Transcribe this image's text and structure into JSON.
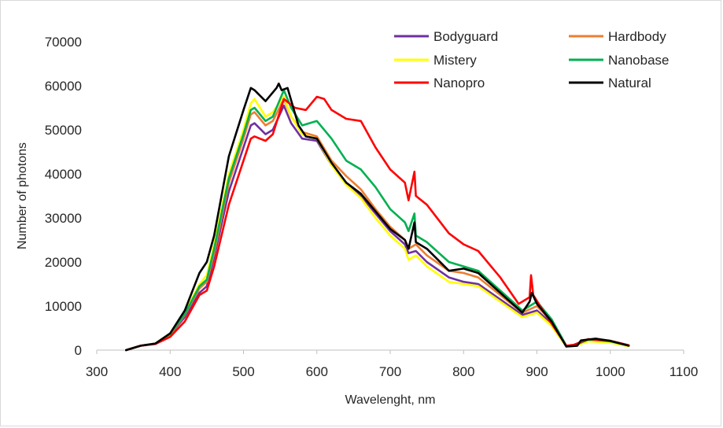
{
  "chart_data": {
    "type": "line",
    "title": "",
    "xlabel": "Wavelenght, nm",
    "ylabel": "Number of photons",
    "xlim": [
      300,
      1100
    ],
    "ylim": [
      0,
      70000
    ],
    "xticks": [
      300,
      400,
      500,
      600,
      700,
      800,
      900,
      1000,
      1100
    ],
    "yticks": [
      0,
      10000,
      20000,
      30000,
      40000,
      50000,
      60000,
      70000
    ],
    "xtick_labels": [
      "300",
      "400",
      "500",
      "600",
      "700",
      "800",
      "900",
      "1000",
      "1100"
    ],
    "ytick_labels": [
      "0",
      "10000",
      "20000",
      "30000",
      "40000",
      "50000",
      "60000",
      "70000"
    ],
    "grid": false,
    "legend_position": "top-right",
    "series": [
      {
        "name": "Bodyguard",
        "color": "#7030a0",
        "points": [
          [
            340,
            0
          ],
          [
            360,
            1000
          ],
          [
            380,
            1500
          ],
          [
            400,
            3500
          ],
          [
            420,
            7500
          ],
          [
            440,
            13000
          ],
          [
            450,
            14500
          ],
          [
            460,
            21000
          ],
          [
            480,
            36000
          ],
          [
            500,
            46000
          ],
          [
            510,
            51000
          ],
          [
            515,
            51500
          ],
          [
            530,
            49000
          ],
          [
            540,
            50000
          ],
          [
            555,
            55500
          ],
          [
            565,
            51500
          ],
          [
            580,
            48000
          ],
          [
            600,
            47500
          ],
          [
            620,
            42000
          ],
          [
            640,
            38000
          ],
          [
            660,
            35000
          ],
          [
            680,
            31000
          ],
          [
            700,
            27000
          ],
          [
            720,
            24000
          ],
          [
            725,
            22000
          ],
          [
            735,
            22500
          ],
          [
            750,
            20000
          ],
          [
            780,
            16500
          ],
          [
            800,
            15500
          ],
          [
            820,
            15000
          ],
          [
            850,
            11500
          ],
          [
            880,
            8000
          ],
          [
            900,
            9000
          ],
          [
            920,
            6000
          ],
          [
            940,
            1000
          ],
          [
            950,
            1000
          ],
          [
            970,
            2200
          ],
          [
            1000,
            1800
          ],
          [
            1025,
            1000
          ]
        ]
      },
      {
        "name": "Hardbody",
        "color": "#ed7d31",
        "points": [
          [
            340,
            0
          ],
          [
            360,
            1000
          ],
          [
            380,
            1500
          ],
          [
            400,
            3500
          ],
          [
            420,
            8000
          ],
          [
            440,
            14000
          ],
          [
            450,
            15500
          ],
          [
            460,
            22000
          ],
          [
            480,
            38000
          ],
          [
            500,
            48000
          ],
          [
            510,
            53500
          ],
          [
            515,
            54000
          ],
          [
            530,
            51000
          ],
          [
            540,
            52000
          ],
          [
            555,
            57000
          ],
          [
            565,
            53000
          ],
          [
            580,
            49500
          ],
          [
            600,
            48500
          ],
          [
            620,
            43000
          ],
          [
            640,
            39500
          ],
          [
            660,
            36500
          ],
          [
            680,
            32000
          ],
          [
            700,
            28000
          ],
          [
            720,
            25000
          ],
          [
            725,
            23000
          ],
          [
            735,
            24000
          ],
          [
            750,
            21500
          ],
          [
            780,
            18000
          ],
          [
            800,
            17500
          ],
          [
            820,
            16500
          ],
          [
            850,
            12500
          ],
          [
            880,
            8500
          ],
          [
            900,
            10000
          ],
          [
            920,
            6500
          ],
          [
            940,
            1000
          ],
          [
            950,
            1000
          ],
          [
            970,
            2300
          ],
          [
            1000,
            1900
          ],
          [
            1025,
            1000
          ]
        ]
      },
      {
        "name": "Mistery",
        "color": "#ffff00",
        "points": [
          [
            340,
            0
          ],
          [
            360,
            1000
          ],
          [
            380,
            1500
          ],
          [
            400,
            3800
          ],
          [
            420,
            8500
          ],
          [
            440,
            15000
          ],
          [
            450,
            17000
          ],
          [
            460,
            24000
          ],
          [
            480,
            40000
          ],
          [
            500,
            50000
          ],
          [
            510,
            56000
          ],
          [
            515,
            57000
          ],
          [
            530,
            53000
          ],
          [
            540,
            54000
          ],
          [
            555,
            57500
          ],
          [
            565,
            53000
          ],
          [
            580,
            49000
          ],
          [
            600,
            48000
          ],
          [
            620,
            42000
          ],
          [
            640,
            37500
          ],
          [
            660,
            34500
          ],
          [
            680,
            30000
          ],
          [
            700,
            26000
          ],
          [
            720,
            23000
          ],
          [
            725,
            20500
          ],
          [
            735,
            21500
          ],
          [
            750,
            19000
          ],
          [
            780,
            15500
          ],
          [
            800,
            15000
          ],
          [
            820,
            14500
          ],
          [
            850,
            11000
          ],
          [
            880,
            7500
          ],
          [
            900,
            8500
          ],
          [
            920,
            5500
          ],
          [
            940,
            800
          ],
          [
            950,
            900
          ],
          [
            970,
            2000
          ],
          [
            1000,
            1700
          ],
          [
            1025,
            900
          ]
        ]
      },
      {
        "name": "Nanobase",
        "color": "#00b050",
        "points": [
          [
            340,
            0
          ],
          [
            360,
            1000
          ],
          [
            380,
            1500
          ],
          [
            400,
            3700
          ],
          [
            420,
            8200
          ],
          [
            440,
            14500
          ],
          [
            450,
            16000
          ],
          [
            460,
            23000
          ],
          [
            480,
            39000
          ],
          [
            500,
            49000
          ],
          [
            510,
            54500
          ],
          [
            515,
            55000
          ],
          [
            530,
            52000
          ],
          [
            540,
            53000
          ],
          [
            555,
            59000
          ],
          [
            565,
            55000
          ],
          [
            580,
            51000
          ],
          [
            600,
            52000
          ],
          [
            620,
            48000
          ],
          [
            640,
            43000
          ],
          [
            660,
            41000
          ],
          [
            680,
            37000
          ],
          [
            700,
            32000
          ],
          [
            720,
            29000
          ],
          [
            725,
            27000
          ],
          [
            733,
            31000
          ],
          [
            735,
            26000
          ],
          [
            750,
            24500
          ],
          [
            780,
            20000
          ],
          [
            800,
            19000
          ],
          [
            820,
            18000
          ],
          [
            850,
            13500
          ],
          [
            880,
            9000
          ],
          [
            900,
            11000
          ],
          [
            920,
            7000
          ],
          [
            940,
            1000
          ],
          [
            950,
            1000
          ],
          [
            970,
            2400
          ],
          [
            1000,
            2000
          ],
          [
            1025,
            1000
          ]
        ]
      },
      {
        "name": "Nanopro",
        "color": "#ff0000",
        "points": [
          [
            340,
            0
          ],
          [
            360,
            1000
          ],
          [
            380,
            1400
          ],
          [
            400,
            3000
          ],
          [
            420,
            6500
          ],
          [
            440,
            12500
          ],
          [
            450,
            13500
          ],
          [
            460,
            19000
          ],
          [
            480,
            33000
          ],
          [
            500,
            43000
          ],
          [
            510,
            48000
          ],
          [
            515,
            48500
          ],
          [
            530,
            47500
          ],
          [
            540,
            49000
          ],
          [
            555,
            57000
          ],
          [
            570,
            55000
          ],
          [
            585,
            54500
          ],
          [
            600,
            57500
          ],
          [
            610,
            57000
          ],
          [
            620,
            54500
          ],
          [
            640,
            52500
          ],
          [
            660,
            52000
          ],
          [
            680,
            46000
          ],
          [
            700,
            41000
          ],
          [
            720,
            38000
          ],
          [
            725,
            34000
          ],
          [
            733,
            40500
          ],
          [
            735,
            35000
          ],
          [
            750,
            33000
          ],
          [
            780,
            26500
          ],
          [
            800,
            24000
          ],
          [
            820,
            22500
          ],
          [
            850,
            16500
          ],
          [
            875,
            10500
          ],
          [
            890,
            12000
          ],
          [
            892,
            17000
          ],
          [
            895,
            12500
          ],
          [
            910,
            8500
          ],
          [
            940,
            1000
          ],
          [
            950,
            1200
          ],
          [
            970,
            2500
          ],
          [
            1000,
            2100
          ],
          [
            1025,
            1100
          ]
        ]
      },
      {
        "name": "Natural",
        "color": "#000000",
        "points": [
          [
            340,
            0
          ],
          [
            360,
            1000
          ],
          [
            380,
            1500
          ],
          [
            400,
            3800
          ],
          [
            420,
            9000
          ],
          [
            440,
            17500
          ],
          [
            450,
            20000
          ],
          [
            460,
            26000
          ],
          [
            480,
            44000
          ],
          [
            500,
            54500
          ],
          [
            510,
            59500
          ],
          [
            515,
            59000
          ],
          [
            530,
            56500
          ],
          [
            545,
            59500
          ],
          [
            548,
            60500
          ],
          [
            552,
            59000
          ],
          [
            560,
            59500
          ],
          [
            575,
            51000
          ],
          [
            585,
            48500
          ],
          [
            600,
            48000
          ],
          [
            620,
            42500
          ],
          [
            640,
            38000
          ],
          [
            660,
            35500
          ],
          [
            680,
            31500
          ],
          [
            700,
            27500
          ],
          [
            720,
            25000
          ],
          [
            725,
            23000
          ],
          [
            733,
            29000
          ],
          [
            735,
            24500
          ],
          [
            750,
            23000
          ],
          [
            780,
            18000
          ],
          [
            800,
            18500
          ],
          [
            820,
            17500
          ],
          [
            850,
            13000
          ],
          [
            880,
            8500
          ],
          [
            890,
            11000
          ],
          [
            893,
            13000
          ],
          [
            900,
            10500
          ],
          [
            920,
            6500
          ],
          [
            940,
            800
          ],
          [
            955,
            1000
          ],
          [
            960,
            2200
          ],
          [
            980,
            2600
          ],
          [
            1000,
            2100
          ],
          [
            1025,
            1000
          ]
        ]
      }
    ]
  }
}
